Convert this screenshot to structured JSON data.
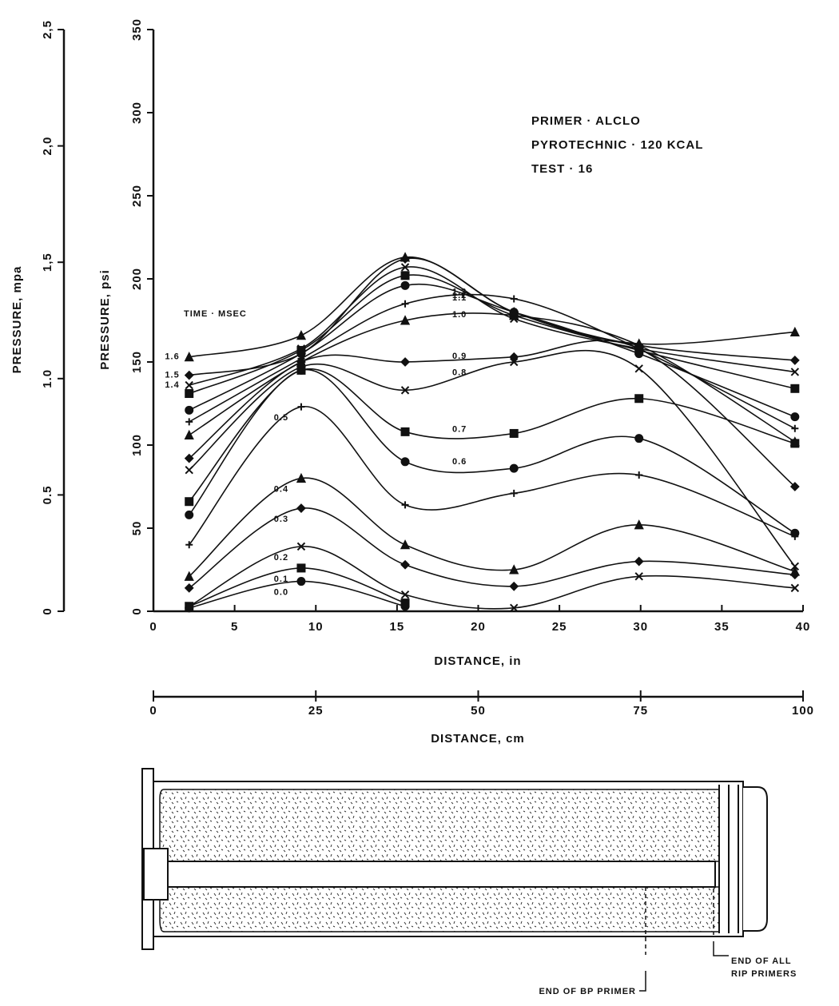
{
  "chart_data": {
    "type": "line",
    "annotations": [
      "PRIMER · ALCLO",
      "PYROTECHNIC · 120 KCAL",
      "TEST · 16"
    ],
    "legend_title": "TIME · MSEC",
    "xlabel": "DISTANCE, in",
    "ylabel": "PRESSURE, psi",
    "y2label": "PRESSURE, mpa",
    "x2label": "DISTANCE, cm",
    "x": [
      2.2,
      9.1,
      15.5,
      22.2,
      29.9,
      39.5
    ],
    "xlim": [
      0,
      40
    ],
    "xticks": [
      0,
      5,
      10,
      15,
      20,
      25,
      30,
      35,
      40
    ],
    "ylim": [
      0,
      350
    ],
    "yticks": [
      0,
      50,
      100,
      150,
      200,
      250,
      300,
      350
    ],
    "y2lim": [
      0,
      2.5
    ],
    "y2ticks": [
      0,
      0.5,
      {
        "value": 1,
        "label": "1.0"
      },
      {
        "value": 1.5,
        "label": "1,5"
      },
      {
        "value": 2,
        "label": "2,0"
      },
      {
        "value": 2.5,
        "label": "2,5"
      }
    ],
    "x2lim": [
      0,
      100
    ],
    "x2ticks": [
      0,
      25,
      50,
      75,
      100
    ],
    "color": "#111111",
    "series": [
      {
        "name": "0.0",
        "values": [
          2,
          18,
          3,
          null,
          null,
          null
        ]
      },
      {
        "name": "0.1",
        "values": [
          3,
          26,
          5,
          null,
          null,
          null
        ]
      },
      {
        "name": "0.2",
        "values": [
          3,
          39,
          10,
          2,
          21,
          14
        ]
      },
      {
        "name": "0.3",
        "values": [
          14,
          62,
          28,
          15,
          30,
          22
        ]
      },
      {
        "name": "0.4",
        "values": [
          21,
          80,
          40,
          25,
          52,
          24
        ]
      },
      {
        "name": "0.5",
        "values": [
          40,
          123,
          64,
          71,
          82,
          45
        ]
      },
      {
        "name": "0.6",
        "values": [
          58,
          145,
          90,
          86,
          104,
          47
        ]
      },
      {
        "name": "0.7",
        "values": [
          66,
          145,
          108,
          107,
          128,
          101
        ]
      },
      {
        "name": "0.8",
        "values": [
          85,
          147,
          133,
          150,
          146,
          27
        ]
      },
      {
        "name": "0.9",
        "values": [
          92,
          150,
          150,
          153,
          158,
          75
        ]
      },
      {
        "name": "1.0",
        "values": [
          106,
          150,
          175,
          178,
          160,
          102
        ]
      },
      {
        "name": "1.1",
        "values": [
          114,
          152,
          185,
          188,
          158,
          110
        ]
      },
      {
        "name": "1.2",
        "values": [
          121,
          155,
          196,
          180,
          155,
          117
        ]
      },
      {
        "name": "1.3",
        "values": [
          131,
          157,
          202,
          178,
          157,
          134
        ]
      },
      {
        "name": "1.4",
        "values": [
          136,
          158,
          207,
          176,
          158,
          144
        ]
      },
      {
        "name": "1.5",
        "values": [
          142,
          155,
          212,
          180,
          160,
          151
        ]
      },
      {
        "name": "1.6",
        "values": [
          153,
          166,
          213,
          180,
          161,
          168
        ]
      }
    ]
  },
  "diagram": {
    "labels": [
      "END OF ALL",
      "RIP PRIMERS",
      "END OF BP PRIMER"
    ]
  }
}
